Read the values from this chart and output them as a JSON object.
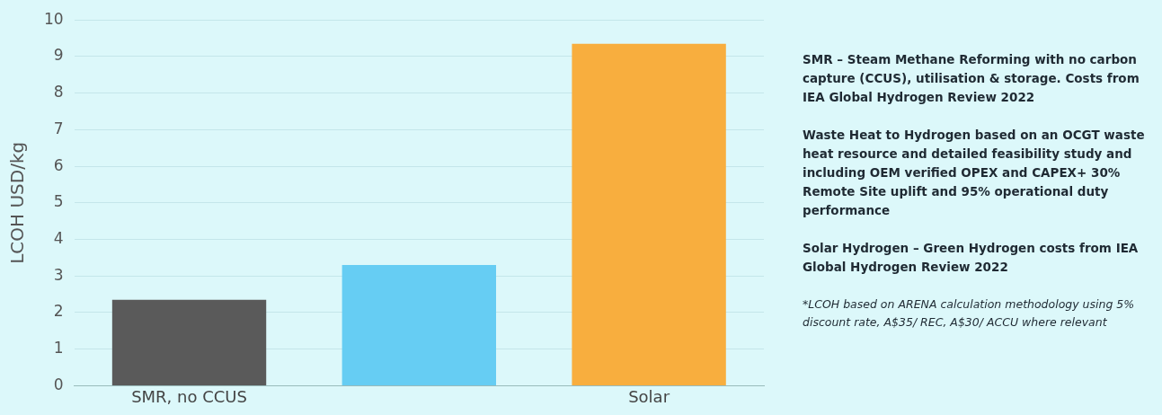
{
  "chart_data": {
    "type": "bar",
    "categories": [
      "SMR, no CCUS",
      null,
      "Solar"
    ],
    "values": [
      2.35,
      3.3,
      9.35
    ],
    "colors": [
      "#5a5a5a",
      "#66cdf3",
      "#f8ae3e"
    ],
    "ylabel": "LCOH USD/kg",
    "ylim": [
      0,
      10
    ],
    "yticks": [
      0,
      1,
      2,
      3,
      4,
      5,
      6,
      7,
      8,
      9,
      10
    ],
    "grid": "y",
    "annotations": [
      "SMR – Steam Methane Reforming with no carbon capture (CCUS), utilisation & storage. Costs from IEA Global Hydrogen Review 2022",
      "Waste Heat to Hydrogen based on an OCGT waste heat resource and detailed feasibility study and including OEM verified OPEX and CAPEX+ 30% Remote Site uplift and 95% operational duty performance",
      "Solar Hydrogen – Green Hydrogen costs from IEA Global Hydrogen Review 2022",
      "*LCOH based on ARENA calculation methodology using 5% discount rate, A$35/ REC, A$30/ ACCU where relevant"
    ]
  }
}
